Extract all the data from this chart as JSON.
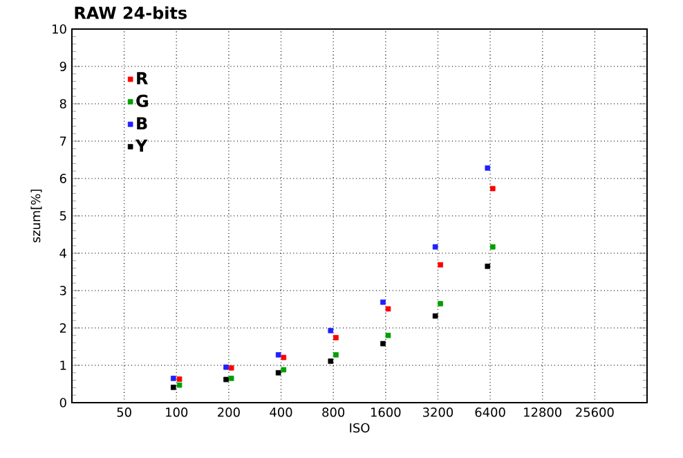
{
  "chart_data": {
    "type": "scatter",
    "title": "RAW 24-bits",
    "xlabel": "ISO",
    "ylabel": "szum[%]",
    "log": "x",
    "grid": true,
    "legend": "top left",
    "marker": "square",
    "xlim": [
      25,
      51200
    ],
    "xticks": [
      50,
      100,
      200,
      400,
      800,
      1600,
      3200,
      6400,
      12800,
      25600
    ],
    "ylim": [
      0,
      10
    ],
    "yticks": [
      0,
      1,
      2,
      3,
      4,
      5,
      6,
      7,
      8,
      9,
      10
    ],
    "series": [
      {
        "name": "R",
        "color": "#ff0000",
        "x": [
          104,
          207,
          414,
          828,
          1655,
          3310,
          6620
        ],
        "values": [
          0.63,
          0.93,
          1.21,
          1.74,
          2.51,
          3.69,
          5.73
        ]
      },
      {
        "name": "G",
        "color": "#00a000",
        "x": [
          104,
          207,
          414,
          828,
          1655,
          3310,
          6620
        ],
        "values": [
          0.47,
          0.65,
          0.88,
          1.28,
          1.8,
          2.65,
          4.17
        ]
      },
      {
        "name": "B",
        "color": "#2020ff",
        "x": [
          96,
          193,
          386,
          772,
          1545,
          3090,
          6180
        ],
        "values": [
          0.65,
          0.95,
          1.28,
          1.93,
          2.69,
          4.17,
          6.28
        ]
      },
      {
        "name": "Y",
        "color": "#000000",
        "x": [
          96,
          193,
          386,
          772,
          1545,
          3090,
          6180
        ],
        "values": [
          0.41,
          0.62,
          0.8,
          1.11,
          1.58,
          2.32,
          3.65
        ]
      }
    ]
  }
}
